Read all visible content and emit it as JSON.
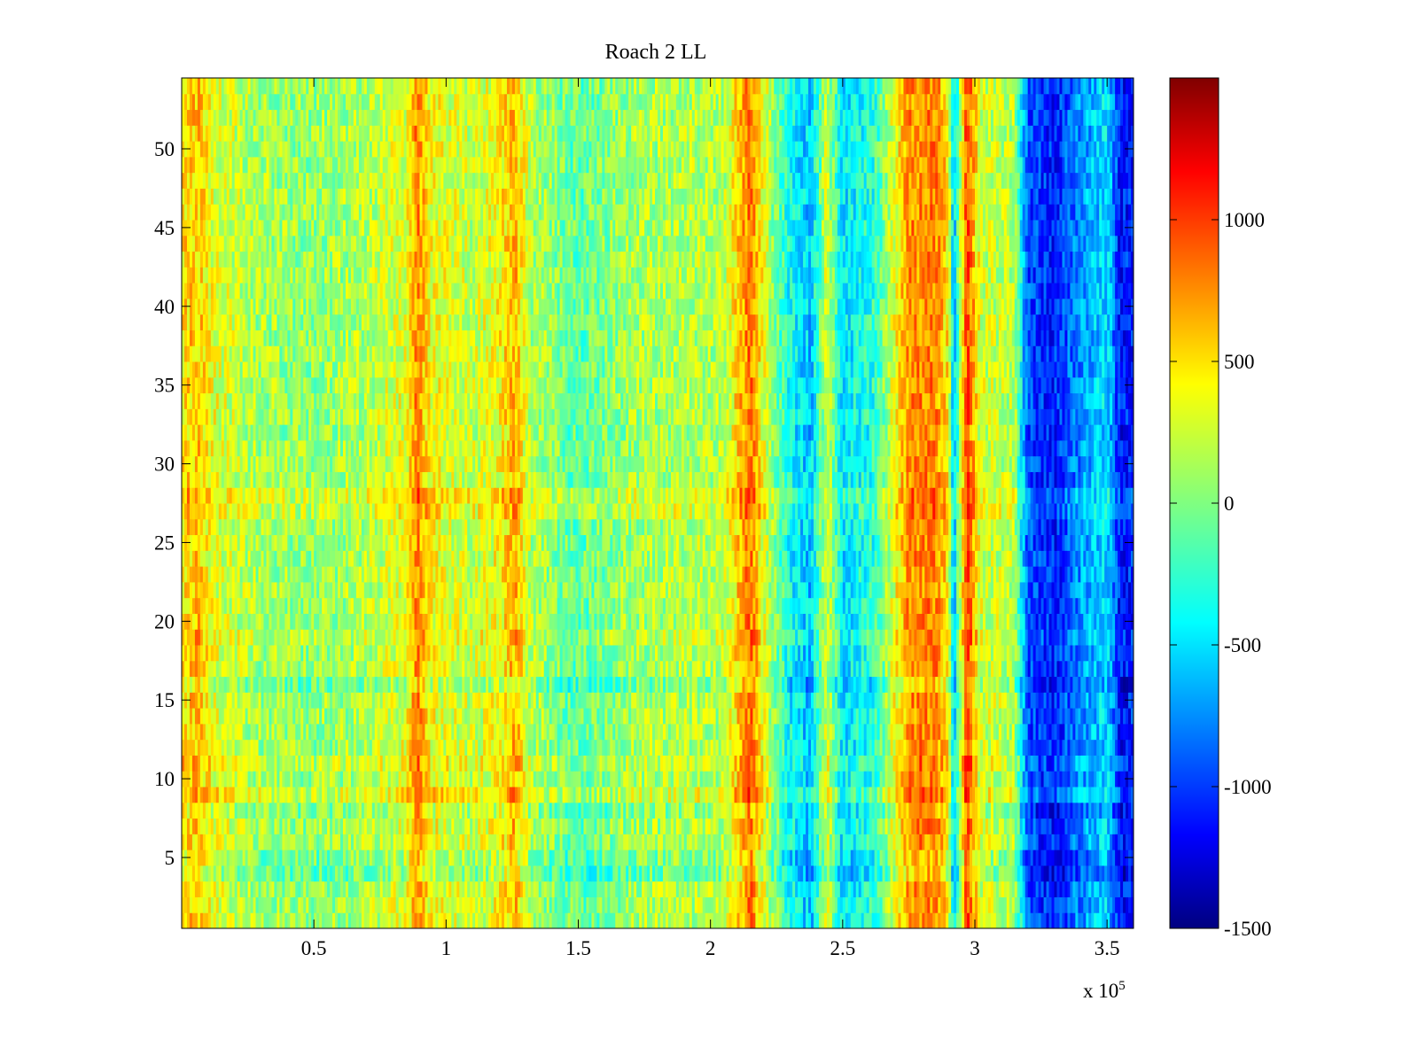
{
  "chart_data": {
    "type": "heatmap",
    "title": "Roach 2 LL",
    "xlabel": "",
    "ylabel": "",
    "x_multiplier_label": "x 10",
    "x_multiplier_exponent": "5",
    "xlim": [
      0,
      3.6
    ],
    "ylim": [
      0.5,
      54.5
    ],
    "x_ticks": [
      0.5,
      1,
      1.5,
      2,
      2.5,
      3,
      3.5
    ],
    "x_tick_labels": [
      "0.5",
      "1",
      "1.5",
      "2",
      "2.5",
      "3",
      "3.5"
    ],
    "y_ticks": [
      5,
      10,
      15,
      20,
      25,
      30,
      35,
      40,
      45,
      50
    ],
    "y_tick_labels": [
      "5",
      "10",
      "15",
      "20",
      "25",
      "30",
      "35",
      "40",
      "45",
      "50"
    ],
    "rows": 54,
    "colormap": "jet",
    "colorbar": {
      "clim": [
        -1500,
        1500
      ],
      "ticks": [
        -1500,
        -1000,
        -500,
        0,
        500,
        1000
      ],
      "tick_labels": [
        "-1500",
        "-1000",
        "-500",
        "0",
        "500",
        "1000"
      ]
    },
    "column_profile": [
      {
        "x": 0.0,
        "value": 450
      },
      {
        "x": 0.06,
        "value": 550
      },
      {
        "x": 0.12,
        "value": 300
      },
      {
        "x": 0.3,
        "value": 100
      },
      {
        "x": 0.5,
        "value": 50
      },
      {
        "x": 0.7,
        "value": 150
      },
      {
        "x": 0.85,
        "value": 300
      },
      {
        "x": 0.89,
        "value": 750
      },
      {
        "x": 0.94,
        "value": 350
      },
      {
        "x": 1.1,
        "value": 200
      },
      {
        "x": 1.2,
        "value": 350
      },
      {
        "x": 1.26,
        "value": 600
      },
      {
        "x": 1.32,
        "value": 150
      },
      {
        "x": 1.5,
        "value": -100
      },
      {
        "x": 1.7,
        "value": 100
      },
      {
        "x": 1.9,
        "value": 150
      },
      {
        "x": 2.05,
        "value": 150
      },
      {
        "x": 2.15,
        "value": 800
      },
      {
        "x": 2.2,
        "value": 300
      },
      {
        "x": 2.3,
        "value": -350
      },
      {
        "x": 2.38,
        "value": -550
      },
      {
        "x": 2.44,
        "value": 250
      },
      {
        "x": 2.5,
        "value": -450
      },
      {
        "x": 2.62,
        "value": -250
      },
      {
        "x": 2.75,
        "value": 700
      },
      {
        "x": 2.85,
        "value": 750
      },
      {
        "x": 2.9,
        "value": 400
      },
      {
        "x": 2.92,
        "value": -600
      },
      {
        "x": 2.97,
        "value": 950
      },
      {
        "x": 3.02,
        "value": 250
      },
      {
        "x": 3.15,
        "value": 150
      },
      {
        "x": 3.2,
        "value": -900
      },
      {
        "x": 3.3,
        "value": -1050
      },
      {
        "x": 3.4,
        "value": -700
      },
      {
        "x": 3.5,
        "value": -450
      },
      {
        "x": 3.55,
        "value": -1100
      },
      {
        "x": 3.6,
        "value": -1000
      }
    ],
    "row_profile": [
      {
        "y": 4,
        "value": -300
      },
      {
        "y": 5,
        "value": -200
      },
      {
        "y": 8,
        "value": -150
      },
      {
        "y": 9,
        "value": 250
      },
      {
        "y": 11,
        "value": 150
      },
      {
        "y": 16,
        "value": -250
      },
      {
        "y": 19,
        "value": 150
      },
      {
        "y": 27,
        "value": 200
      },
      {
        "y": 28,
        "value": 250
      },
      {
        "y": 32,
        "value": -50
      }
    ]
  }
}
